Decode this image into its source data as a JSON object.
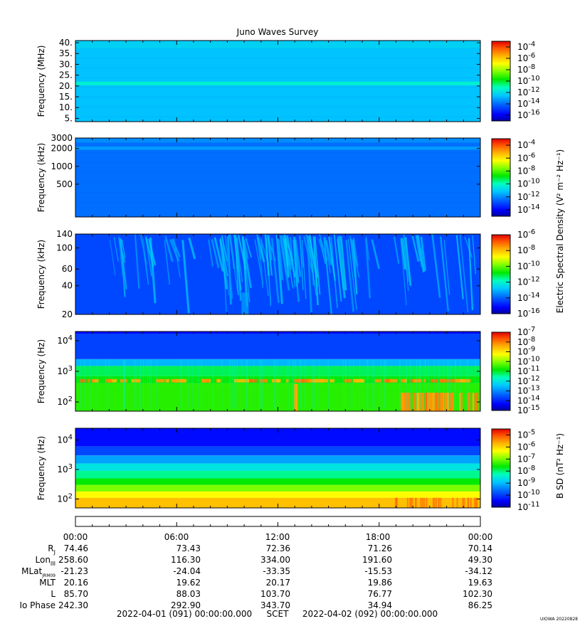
{
  "title": "Juno Waves Survey",
  "colors": {
    "background": "#ffffff",
    "axis": "#000000",
    "palette": [
      "#0000a0",
      "#0000ff",
      "#0050ff",
      "#00a0ff",
      "#00ffff",
      "#00ff80",
      "#00e000",
      "#80ff00",
      "#ffff00",
      "#ffc000",
      "#ff8000",
      "#ff2000",
      "#c00000"
    ]
  },
  "colorbar_labels": {
    "shared_label": "Electric Spectral Density (V² m⁻² Hz⁻¹)",
    "b_label": "B SD (nT² Hz⁻¹)"
  },
  "chart_data": [
    {
      "type": "heatmap",
      "panel": "hfwbr",
      "ylabel": "Frequency (MHz)",
      "yscale": "linear",
      "ylim": [
        3.5,
        41
      ],
      "yticks": [
        {
          "v": 5,
          "label": "5."
        },
        {
          "v": 10,
          "label": "10."
        },
        {
          "v": 15,
          "label": "15."
        },
        {
          "v": 20,
          "label": "20."
        },
        {
          "v": 25,
          "label": "25."
        },
        {
          "v": 30,
          "label": "30."
        },
        {
          "v": 35,
          "label": "35."
        },
        {
          "v": 40,
          "label": "40."
        }
      ],
      "colorbar": {
        "scale": "log",
        "range": [
          -17,
          -3
        ],
        "ticks": [
          {
            "v": -4,
            "label": "10",
            "exp": "-4"
          },
          {
            "v": -6,
            "label": "10",
            "exp": "-6"
          },
          {
            "v": -8,
            "label": "10",
            "exp": "-8"
          },
          {
            "v": -10,
            "label": "10",
            "exp": "-10"
          },
          {
            "v": -12,
            "label": "10",
            "exp": "-12"
          },
          {
            "v": -14,
            "label": "10",
            "exp": "-14"
          },
          {
            "v": -16,
            "label": "10",
            "exp": "-16"
          }
        ]
      },
      "features": "nearly uniform background near 1e-13, brighter band near 21 MHz"
    },
    {
      "type": "heatmap",
      "panel": "hfr",
      "ylabel": "Frequency (kHz)",
      "yscale": "log",
      "ylim": [
        140,
        3000
      ],
      "yticks": [
        {
          "v": 500,
          "label": "500"
        },
        {
          "v": 1000,
          "label": "1000"
        },
        {
          "v": 2000,
          "label": "2000"
        },
        {
          "v": 3000,
          "label": "3000"
        }
      ],
      "colorbar": {
        "scale": "log",
        "range": [
          -15,
          -3
        ],
        "ticks": [
          {
            "v": -4,
            "label": "10",
            "exp": "-4"
          },
          {
            "v": -6,
            "label": "10",
            "exp": "-6"
          },
          {
            "v": -8,
            "label": "10",
            "exp": "-8"
          },
          {
            "v": -10,
            "label": "10",
            "exp": "-10"
          },
          {
            "v": -12,
            "label": "10",
            "exp": "-12"
          },
          {
            "v": -14,
            "label": "10",
            "exp": "-14"
          }
        ]
      },
      "features": "uniform background near 1e-13, band near 2000 kHz"
    },
    {
      "type": "heatmap",
      "panel": "lfr-high",
      "ylabel": "Frequency (kHz)",
      "yscale": "log",
      "ylim": [
        20,
        140
      ],
      "yticks": [
        {
          "v": 20,
          "label": "20"
        },
        {
          "v": 40,
          "label": "40"
        },
        {
          "v": 60,
          "label": "60"
        },
        {
          "v": 100,
          "label": "100"
        },
        {
          "v": 140,
          "label": "140"
        }
      ],
      "colorbar": {
        "scale": "log",
        "range": [
          -16,
          -6
        ],
        "ticks": [
          {
            "v": -6,
            "label": "10",
            "exp": "-6"
          },
          {
            "v": -8,
            "label": "10",
            "exp": "-8"
          },
          {
            "v": -10,
            "label": "10",
            "exp": "-10"
          },
          {
            "v": -12,
            "label": "10",
            "exp": "-12"
          },
          {
            "v": -14,
            "label": "10",
            "exp": "-14"
          },
          {
            "v": -16,
            "label": "10",
            "exp": "-16"
          }
        ]
      },
      "features": "background near 1e-14 with drifting emission arcs near 1e-13, strongest 10:00-16:00"
    },
    {
      "type": "heatmap",
      "panel": "lfr-low",
      "ylabel": "Frequency (Hz)",
      "yscale": "log",
      "ylim": [
        50,
        20000
      ],
      "yticks": [
        {
          "v": 100,
          "label": "10",
          "exp": "2"
        },
        {
          "v": 1000,
          "label": "10",
          "exp": "3"
        },
        {
          "v": 10000,
          "label": "10",
          "exp": "4"
        }
      ],
      "colorbar": {
        "scale": "log",
        "range": [
          -15,
          -7
        ],
        "ticks": [
          {
            "v": -7,
            "label": "10",
            "exp": "-7"
          },
          {
            "v": -8,
            "label": "10",
            "exp": "-8"
          },
          {
            "v": -9,
            "label": "10",
            "exp": "-9"
          },
          {
            "v": -10,
            "label": "10",
            "exp": "-10"
          },
          {
            "v": -11,
            "label": "10",
            "exp": "-11"
          },
          {
            "v": -12,
            "label": "10",
            "exp": "-12"
          },
          {
            "v": -13,
            "label": "10",
            "exp": "-13"
          },
          {
            "v": -14,
            "label": "10",
            "exp": "-14"
          },
          {
            "v": -15,
            "label": "10",
            "exp": "-15"
          }
        ]
      },
      "features": "blue above ~3 kHz, green-yellow below, orange bursts near 400 Hz and below 200 Hz after 19:00"
    },
    {
      "type": "heatmap",
      "panel": "magnetic",
      "ylabel": "Frequency (Hz)",
      "yscale": "log",
      "ylim": [
        50,
        25000
      ],
      "yticks": [
        {
          "v": 100,
          "label": "10",
          "exp": "2"
        },
        {
          "v": 1000,
          "label": "10",
          "exp": "3"
        },
        {
          "v": 10000,
          "label": "10",
          "exp": "4"
        }
      ],
      "colorbar": {
        "scale": "log",
        "range": [
          -11,
          -4.5
        ],
        "ticks": [
          {
            "v": -5,
            "label": "10",
            "exp": "-5"
          },
          {
            "v": -6,
            "label": "10",
            "exp": "-6"
          },
          {
            "v": -7,
            "label": "10",
            "exp": "-7"
          },
          {
            "v": -8,
            "label": "10",
            "exp": "-8"
          },
          {
            "v": -9,
            "label": "10",
            "exp": "-9"
          },
          {
            "v": -10,
            "label": "10",
            "exp": "-10"
          },
          {
            "v": -11,
            "label": "10",
            "exp": "-11"
          }
        ]
      },
      "features": "smooth gradient from blue at high frequency to yellow below 200 Hz"
    }
  ],
  "time_axis": {
    "tick_labels": [
      "00:00",
      "06:00",
      "12:00",
      "18:00",
      "00:00"
    ],
    "ephemeris": [
      {
        "name": "R",
        "sub": "J",
        "values": [
          "74.46",
          "73.43",
          "72.36",
          "71.26",
          "70.14"
        ]
      },
      {
        "name": "Lon",
        "sub": "III",
        "values": [
          "258.60",
          "116.30",
          "334.00",
          "191.60",
          "49.30"
        ]
      },
      {
        "name": "MLat",
        "sub": "JRM09",
        "values": [
          "-21.23",
          "-24.04",
          "-33.35",
          "-15.53",
          "-34.12"
        ]
      },
      {
        "name": "MLT",
        "sub": "",
        "values": [
          "20.16",
          "19.62",
          "20.17",
          "19.86",
          "19.63"
        ]
      },
      {
        "name": "L",
        "sub": "",
        "values": [
          "85.70",
          "88.03",
          "103.70",
          "76.77",
          "102.30"
        ]
      },
      {
        "name": "Io Phase",
        "sub": "",
        "values": [
          "242.30",
          "292.90",
          "343.70",
          "34.94",
          "86.25"
        ]
      }
    ],
    "start": "2022-04-01 (091) 00:00:00.000",
    "scet": "SCET",
    "end": "2022-04-02 (092) 00:00:00.000"
  },
  "credit": "UIOWA 20220828"
}
